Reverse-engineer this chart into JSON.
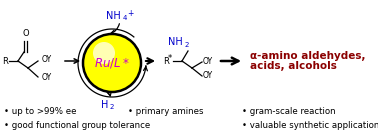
{
  "background_color": "#ffffff",
  "circle_face_color": "#ffff00",
  "circle_edge_color": "#000000",
  "ru_color": "#cc00cc",
  "nh4_color": "#0000cc",
  "h2_color": "#0000cc",
  "nh2_color": "#0000cc",
  "product_text_line1": "α-amino aldehydes,",
  "product_text_line2": "acids, alcohols",
  "product_color": "#8b0000",
  "bullet_color": "#000000",
  "bp_row1_col1": "up to >99% ee",
  "bp_row1_col2": "primary amines",
  "bp_row1_col3": "gram-scale reaction",
  "bp_row2_col1": "good functional group tolerance",
  "bp_row2_col3": "valuable synthetic applications"
}
